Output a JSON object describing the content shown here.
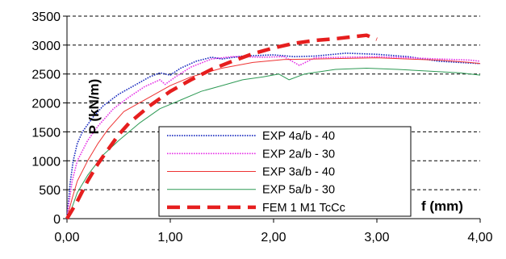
{
  "chart_data": {
    "type": "line",
    "xlabel": "f (mm)",
    "ylabel": "P (kN/m)",
    "xlim": [
      0,
      4
    ],
    "ylim": [
      0,
      3500
    ],
    "x_ticks": [
      "0,00",
      "1,00",
      "2,00",
      "3,00",
      "4,00"
    ],
    "y_ticks": [
      "0",
      "500",
      "1000",
      "1500",
      "2000",
      "2500",
      "3000",
      "3500"
    ],
    "grid": "horizontal dashed",
    "legend_placement": "bottom-center",
    "colors": {
      "exp4": "#1a2bbf",
      "exp2": "#e633e6",
      "exp3": "#ee3333",
      "exp5": "#2e9a55",
      "fem": "#e61e1e"
    },
    "series": [
      {
        "name": "EXP 4a/b - 40",
        "color_key": "exp4",
        "style": "dotted",
        "points": [
          [
            0,
            0
          ],
          [
            0.03,
            600
          ],
          [
            0.06,
            1000
          ],
          [
            0.1,
            1300
          ],
          [
            0.15,
            1500
          ],
          [
            0.25,
            1750
          ],
          [
            0.35,
            1950
          ],
          [
            0.5,
            2150
          ],
          [
            0.65,
            2300
          ],
          [
            0.8,
            2450
          ],
          [
            0.9,
            2520
          ],
          [
            1.0,
            2480
          ],
          [
            1.1,
            2600
          ],
          [
            1.25,
            2720
          ],
          [
            1.4,
            2790
          ],
          [
            1.5,
            2760
          ],
          [
            1.7,
            2810
          ],
          [
            2.0,
            2830
          ],
          [
            2.2,
            2800
          ],
          [
            2.4,
            2810
          ],
          [
            2.7,
            2860
          ],
          [
            3.0,
            2840
          ],
          [
            3.3,
            2800
          ],
          [
            3.6,
            2720
          ],
          [
            3.8,
            2700
          ],
          [
            4.0,
            2680
          ]
        ]
      },
      {
        "name": "EXP 2a/b - 30",
        "color_key": "exp2",
        "style": "dotted",
        "points": [
          [
            0,
            0
          ],
          [
            0.05,
            650
          ],
          [
            0.1,
            1000
          ],
          [
            0.2,
            1350
          ],
          [
            0.3,
            1600
          ],
          [
            0.45,
            1900
          ],
          [
            0.6,
            2100
          ],
          [
            0.75,
            2280
          ],
          [
            0.9,
            2400
          ],
          [
            0.95,
            2320
          ],
          [
            1.05,
            2450
          ],
          [
            1.2,
            2620
          ],
          [
            1.4,
            2760
          ],
          [
            1.6,
            2800
          ],
          [
            1.9,
            2790
          ],
          [
            2.1,
            2800
          ],
          [
            2.25,
            2650
          ],
          [
            2.4,
            2780
          ],
          [
            2.7,
            2790
          ],
          [
            3.0,
            2800
          ],
          [
            3.3,
            2780
          ],
          [
            3.6,
            2760
          ],
          [
            3.9,
            2740
          ],
          [
            4.0,
            2720
          ]
        ]
      },
      {
        "name": "EXP 3a/b - 40",
        "color_key": "exp3",
        "style": "solid-thin",
        "points": [
          [
            0,
            0
          ],
          [
            0.05,
            350
          ],
          [
            0.1,
            650
          ],
          [
            0.2,
            1000
          ],
          [
            0.3,
            1300
          ],
          [
            0.4,
            1550
          ],
          [
            0.55,
            1850
          ],
          [
            0.7,
            2000
          ],
          [
            0.85,
            2150
          ],
          [
            1.0,
            2300
          ],
          [
            1.2,
            2450
          ],
          [
            1.5,
            2600
          ],
          [
            1.8,
            2700
          ],
          [
            2.1,
            2750
          ],
          [
            2.4,
            2760
          ],
          [
            2.7,
            2770
          ],
          [
            3.0,
            2780
          ],
          [
            3.3,
            2760
          ],
          [
            3.6,
            2740
          ],
          [
            3.9,
            2700
          ],
          [
            4.0,
            2680
          ]
        ]
      },
      {
        "name": "EXP 5a/b - 30",
        "color_key": "exp5",
        "style": "solid-thin",
        "points": [
          [
            0,
            0
          ],
          [
            0.05,
            200
          ],
          [
            0.1,
            450
          ],
          [
            0.2,
            750
          ],
          [
            0.35,
            1100
          ],
          [
            0.5,
            1350
          ],
          [
            0.7,
            1650
          ],
          [
            0.9,
            1900
          ],
          [
            1.1,
            2050
          ],
          [
            1.3,
            2200
          ],
          [
            1.5,
            2300
          ],
          [
            1.7,
            2400
          ],
          [
            1.9,
            2450
          ],
          [
            2.05,
            2500
          ],
          [
            2.15,
            2400
          ],
          [
            2.3,
            2500
          ],
          [
            2.6,
            2580
          ],
          [
            2.9,
            2600
          ],
          [
            3.2,
            2580
          ],
          [
            3.5,
            2550
          ],
          [
            3.8,
            2520
          ],
          [
            4.0,
            2480
          ]
        ]
      },
      {
        "name": "FEM 1 M1 TcCc",
        "color_key": "fem",
        "style": "dashed-thick",
        "points": [
          [
            0,
            0
          ],
          [
            0.1,
            300
          ],
          [
            0.2,
            650
          ],
          [
            0.3,
            950
          ],
          [
            0.4,
            1200
          ],
          [
            0.5,
            1450
          ],
          [
            0.6,
            1650
          ],
          [
            0.8,
            1950
          ],
          [
            1.0,
            2200
          ],
          [
            1.2,
            2400
          ],
          [
            1.4,
            2580
          ],
          [
            1.6,
            2720
          ],
          [
            1.8,
            2850
          ],
          [
            2.0,
            2950
          ],
          [
            2.2,
            3030
          ],
          [
            2.4,
            3080
          ],
          [
            2.6,
            3110
          ],
          [
            2.8,
            3150
          ],
          [
            2.9,
            3170
          ],
          [
            3.0,
            3100
          ]
        ]
      }
    ]
  }
}
